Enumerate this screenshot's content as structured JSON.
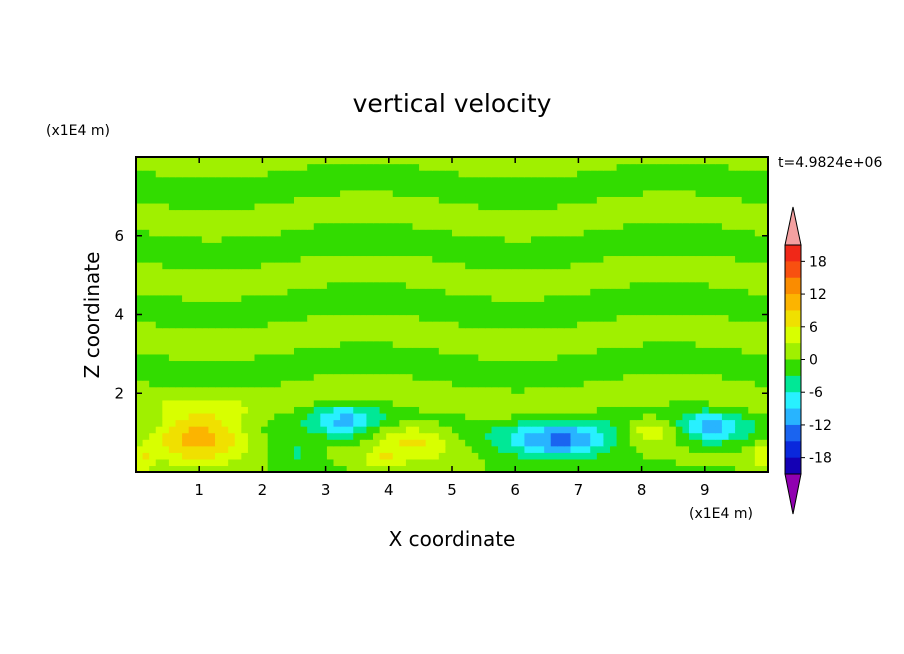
{
  "chart_data": {
    "type": "heatmap",
    "title": "vertical velocity",
    "xlabel": "X coordinate",
    "ylabel": "Z coordinate",
    "x_unit": "(x1E4 m)",
    "y_unit": "(x1E4 m)",
    "time_label": "t=4.9824e+06",
    "xlim": [
      0,
      10
    ],
    "ylim": [
      0,
      8
    ],
    "x_ticks": [
      "1",
      "2",
      "3",
      "4",
      "5",
      "6",
      "7",
      "8",
      "9"
    ],
    "y_ticks": [
      "2",
      "4",
      "6"
    ],
    "background_value": 0,
    "features": [
      {
        "x": 1.0,
        "z": 0.9,
        "sx": 0.75,
        "sz": 0.6,
        "value": 12
      },
      {
        "x": 4.4,
        "z": 0.8,
        "sx": 0.6,
        "sz": 0.5,
        "value": 6
      },
      {
        "x": 8.15,
        "z": 1.1,
        "sx": 0.4,
        "sz": 0.35,
        "value": 6
      },
      {
        "x": 3.9,
        "z": 0.3,
        "sx": 0.3,
        "sz": 0.25,
        "value": 5
      },
      {
        "x": 0.1,
        "z": 0.3,
        "sx": 0.15,
        "sz": 0.3,
        "value": 5
      },
      {
        "x": 9.9,
        "z": 0.4,
        "sx": 0.15,
        "sz": 0.4,
        "value": 5
      },
      {
        "x": 6.7,
        "z": 0.8,
        "sx": 0.85,
        "sz": 0.45,
        "value": -12
      },
      {
        "x": 3.3,
        "z": 1.3,
        "sx": 0.5,
        "sz": 0.45,
        "value": -8
      },
      {
        "x": 9.1,
        "z": 1.1,
        "sx": 0.5,
        "sz": 0.4,
        "value": -9
      },
      {
        "x": 2.5,
        "z": 0.5,
        "sx": 0.35,
        "sz": 0.4,
        "value": -4
      }
    ],
    "colorbar": {
      "tick_labels": [
        "18",
        "12",
        "6",
        "0",
        "-6",
        "-12",
        "-18"
      ],
      "tick_values": [
        18,
        12,
        6,
        0,
        -6,
        -12,
        -18
      ],
      "levels": [
        21,
        18,
        15,
        12,
        9,
        6,
        3,
        0,
        -3,
        -6,
        -9,
        -12,
        -15,
        -18,
        -21
      ],
      "colors": [
        "#f02818",
        "#f85010",
        "#fa8c00",
        "#fcb400",
        "#f0e000",
        "#d8ff00",
        "#a0f000",
        "#32dc00",
        "#00e896",
        "#28f0ff",
        "#28b4ff",
        "#1a64f0",
        "#0a28dc",
        "#1400b4"
      ],
      "over_color": "#f4a0a0",
      "under_color": "#9000b0"
    }
  }
}
